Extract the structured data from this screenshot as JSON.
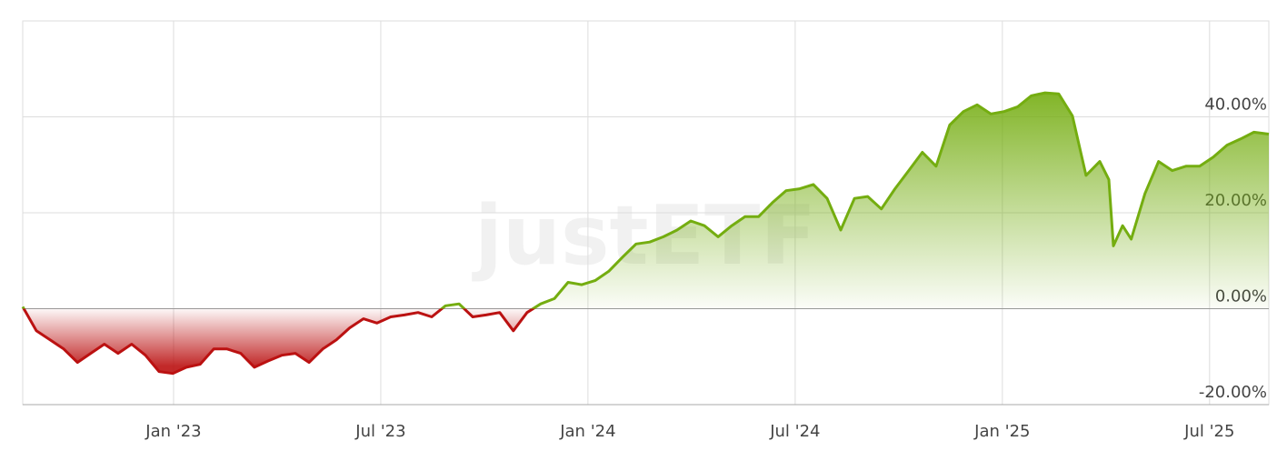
{
  "chart_data": {
    "type": "line",
    "watermark": "justETF",
    "x": [
      2022.636,
      2022.669,
      2022.702,
      2022.735,
      2022.768,
      2022.8,
      2022.833,
      2022.866,
      2022.899,
      2022.932,
      2022.965,
      2022.998,
      2023.031,
      2023.064,
      2023.097,
      2023.129,
      2023.162,
      2023.195,
      2023.228,
      2023.261,
      2023.294,
      2023.327,
      2023.36,
      2023.393,
      2023.425,
      2023.458,
      2023.491,
      2023.524,
      2023.557,
      2023.59,
      2023.623,
      2023.656,
      2023.689,
      2023.722,
      2023.754,
      2023.787,
      2023.82,
      2023.853,
      2023.886,
      2023.919,
      2023.952,
      2023.985,
      2024.018,
      2024.05,
      2024.083,
      2024.116,
      2024.149,
      2024.182,
      2024.215,
      2024.248,
      2024.281,
      2024.314,
      2024.347,
      2024.379,
      2024.412,
      2024.445,
      2024.478,
      2024.511,
      2024.544,
      2024.577,
      2024.61,
      2024.643,
      2024.675,
      2024.708,
      2024.741,
      2024.774,
      2024.807,
      2024.84,
      2024.873,
      2024.906,
      2024.939,
      2024.972,
      2025.004,
      2025.037,
      2025.07,
      2025.103,
      2025.136,
      2025.169,
      2025.202,
      2025.235,
      2025.257,
      2025.268,
      2025.29,
      2025.311,
      2025.344,
      2025.377,
      2025.41,
      2025.443,
      2025.476,
      2025.509,
      2025.542,
      2025.575,
      2025.607,
      2025.643
    ],
    "values": [
      0.4,
      -4.6,
      -6.5,
      -8.4,
      -11.2,
      -9.3,
      -7.4,
      -9.3,
      -7.4,
      -9.7,
      -13.1,
      -13.5,
      -12.2,
      -11.6,
      -8.4,
      -8.4,
      -9.3,
      -12.2,
      -10.9,
      -9.7,
      -9.3,
      -11.2,
      -8.4,
      -6.5,
      -4.0,
      -2.1,
      -3.0,
      -1.7,
      -1.3,
      -0.8,
      -1.7,
      0.6,
      1.0,
      -1.7,
      -1.3,
      -0.8,
      -4.6,
      -0.8,
      1.0,
      2.1,
      5.5,
      5.0,
      5.9,
      7.8,
      10.7,
      13.5,
      13.9,
      15.0,
      16.4,
      18.3,
      17.3,
      15.0,
      17.3,
      19.2,
      19.2,
      22.1,
      24.6,
      25.0,
      25.9,
      23.0,
      16.4,
      23.0,
      23.4,
      20.8,
      25.0,
      28.8,
      32.6,
      29.7,
      38.3,
      41.1,
      42.5,
      40.6,
      41.1,
      42.1,
      44.4,
      45.0,
      44.8,
      40.2,
      27.8,
      30.7,
      26.9,
      13.1,
      17.3,
      14.5,
      24.0,
      30.7,
      28.8,
      29.7,
      29.7,
      31.6,
      34.1,
      35.4,
      36.8,
      36.4
    ],
    "color_positive": "#74ad10",
    "color_negative": "#bb1111",
    "xlim": [
      2022.636,
      2025.643
    ],
    "xticks": [
      {
        "value": 2023,
        "label": "Jan '23"
      },
      {
        "value": 2023.5,
        "label": "Jul '23"
      },
      {
        "value": 2024,
        "label": "Jan '24"
      },
      {
        "value": 2024.5,
        "label": "Jul '24"
      },
      {
        "value": 2025,
        "label": "Jan '25"
      },
      {
        "value": 2025.5,
        "label": "Jul '25"
      }
    ],
    "ylim": [
      -20,
      60
    ],
    "yticks": [
      {
        "value": -20,
        "label": "-20.00%"
      },
      {
        "value": 0,
        "label": "0.00%"
      },
      {
        "value": 20,
        "label": "20.00%"
      },
      {
        "value": 40,
        "label": "40.00%"
      }
    ],
    "grid": true
  }
}
